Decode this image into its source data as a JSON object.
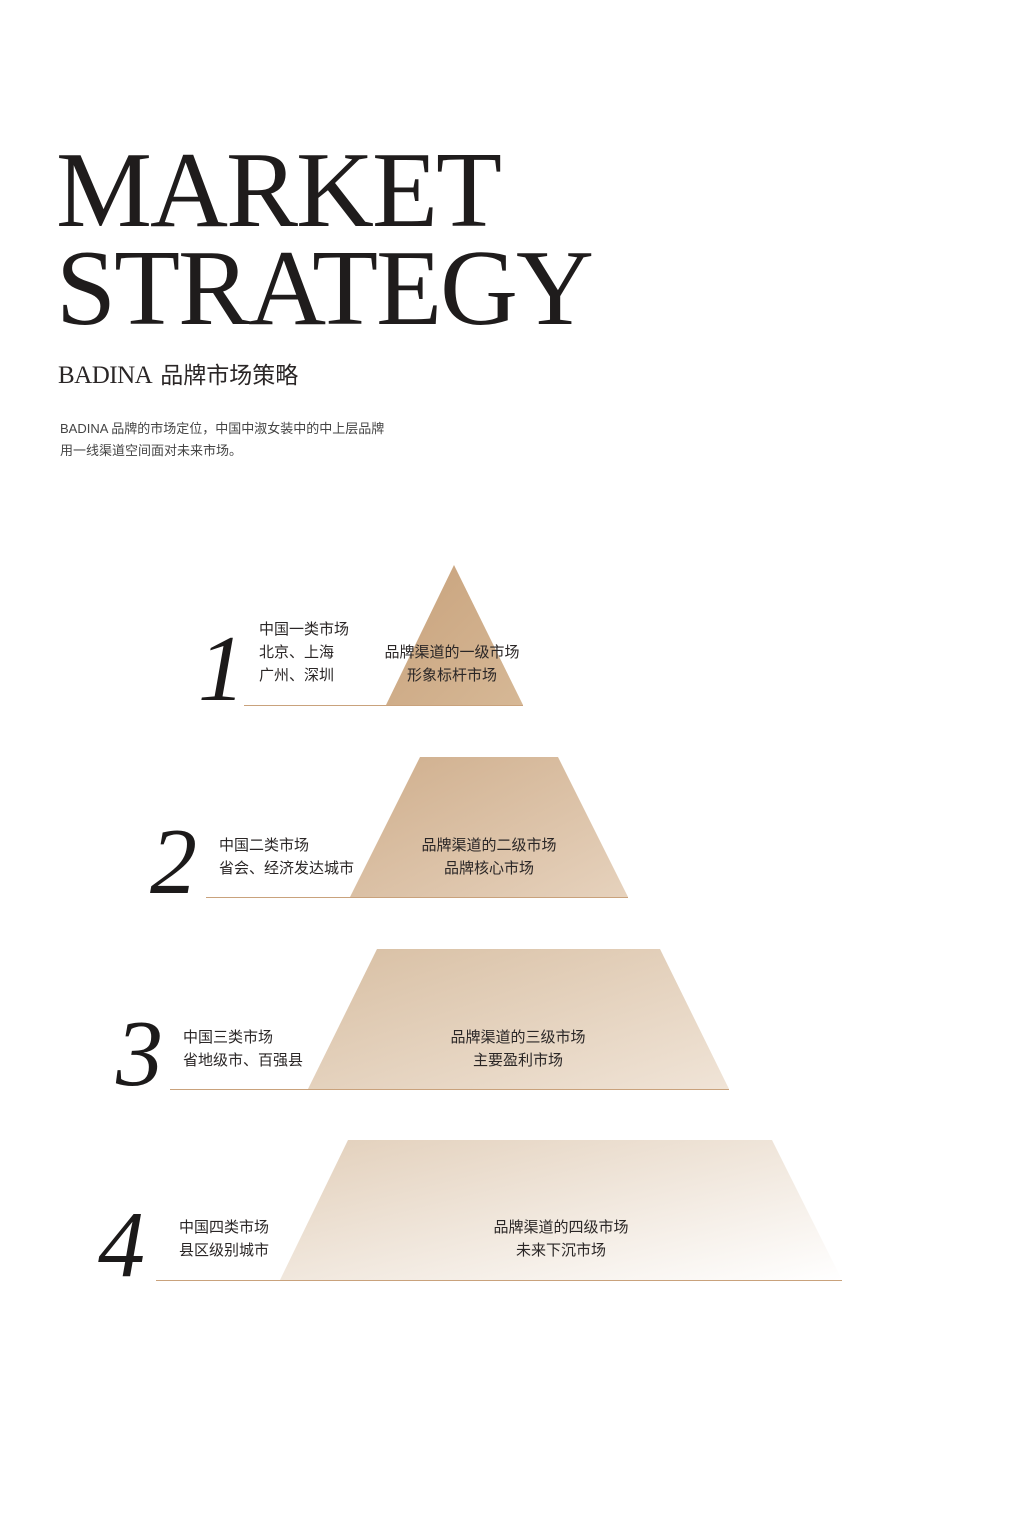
{
  "header": {
    "title_line1": "MARKET",
    "title_line2": "STRATEGY",
    "subtitle_brand": "BADINA",
    "subtitle_cn": "品牌市场策略"
  },
  "intro": {
    "line1": "BADINA 品牌的市场定位，中国中淑女装中的中上层品牌",
    "line2": "用一线渠道空间面对未来市场。"
  },
  "tiers": [
    {
      "number": "1",
      "left": [
        "中国一类市场",
        "北京、上海",
        "广州、深圳"
      ],
      "right": [
        "品牌渠道的一级市场",
        "形象标杆市场"
      ]
    },
    {
      "number": "2",
      "left": [
        "中国二类市场",
        "省会、经济发达城市"
      ],
      "right": [
        "品牌渠道的二级市场",
        "品牌核心市场"
      ]
    },
    {
      "number": "3",
      "left": [
        "中国三类市场",
        "省地级市、百强县"
      ],
      "right": [
        "品牌渠道的三级市场",
        "主要盈利市场"
      ]
    },
    {
      "number": "4",
      "left": [
        "中国四类市场",
        "县区级别城市"
      ],
      "right": [
        "品牌渠道的四级市场",
        "未来下沉市场"
      ]
    }
  ],
  "colors": {
    "tier1": [
      "#c8a27c",
      "#d6b896"
    ],
    "tier2": [
      "#cfae8c",
      "#e6d2bd"
    ],
    "tier3": [
      "#d8bfa3",
      "#f0e4d7"
    ],
    "tier4": [
      "#e2cfba",
      "#ffffff"
    ],
    "accent_line": "#c9a27c"
  }
}
